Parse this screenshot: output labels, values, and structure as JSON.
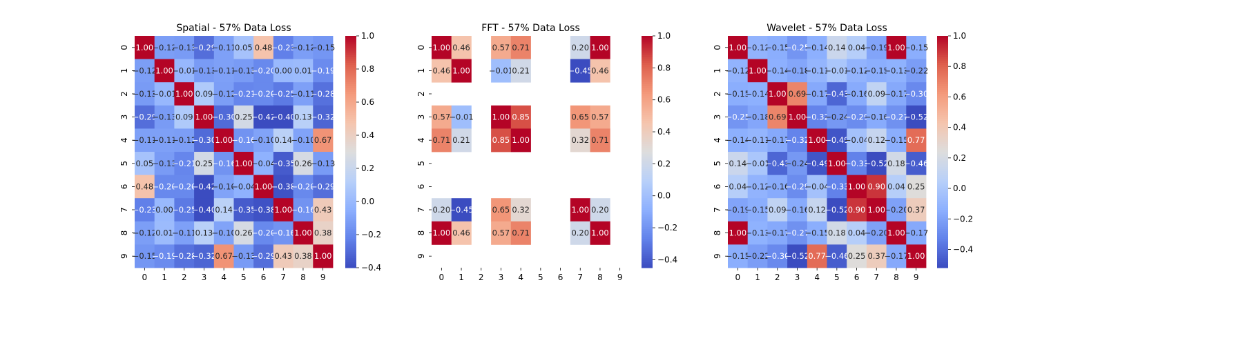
{
  "chart_data": [
    {
      "type": "heatmap",
      "title": "Spatial - 57% Data Loss",
      "x_ticks": [
        "0",
        "1",
        "2",
        "3",
        "4",
        "5",
        "6",
        "7",
        "8",
        "9"
      ],
      "y_ticks": [
        "0",
        "1",
        "2",
        "3",
        "4",
        "5",
        "6",
        "7",
        "8",
        "9"
      ],
      "colormap": "coolwarm",
      "colorbar": {
        "vmin": -0.4,
        "vmax": 1.0,
        "ticks": [
          -0.4,
          -0.2,
          0.0,
          0.2,
          0.4,
          0.6,
          0.8,
          1.0
        ],
        "tick_labels": [
          "−0.4",
          "−0.2",
          "0.0",
          "0.2",
          "0.4",
          "0.6",
          "0.8",
          "1.0"
        ]
      },
      "values": [
        [
          1.0,
          -0.12,
          -0.13,
          -0.29,
          -0.11,
          0.05,
          0.48,
          -0.23,
          -0.12,
          -0.15
        ],
        [
          -0.12,
          1.0,
          -0.01,
          -0.13,
          -0.11,
          -0.13,
          -0.2,
          0.0,
          0.01,
          -0.19
        ],
        [
          -0.13,
          -0.01,
          1.0,
          0.09,
          -0.12,
          -0.21,
          -0.2,
          -0.25,
          -0.11,
          -0.28
        ],
        [
          -0.29,
          -0.13,
          0.09,
          1.0,
          -0.3,
          0.25,
          -0.42,
          -0.4,
          0.13,
          -0.32
        ],
        [
          -0.11,
          -0.11,
          -0.12,
          -0.3,
          1.0,
          -0.16,
          -0.1,
          0.14,
          -0.1,
          0.67
        ],
        [
          0.05,
          -0.13,
          -0.21,
          0.25,
          -0.16,
          1.0,
          -0.04,
          -0.35,
          0.26,
          -0.13
        ],
        [
          0.48,
          -0.2,
          -0.2,
          -0.42,
          -0.1,
          -0.04,
          1.0,
          -0.38,
          -0.2,
          -0.29
        ],
        [
          -0.23,
          0.0,
          -0.25,
          -0.4,
          0.14,
          -0.35,
          -0.38,
          1.0,
          -0.16,
          0.43
        ],
        [
          -0.12,
          0.01,
          -0.11,
          0.13,
          -0.1,
          0.26,
          -0.2,
          -0.16,
          1.0,
          0.38
        ],
        [
          -0.15,
          -0.19,
          -0.28,
          -0.32,
          0.67,
          -0.13,
          -0.29,
          0.43,
          0.38,
          1.0
        ]
      ]
    },
    {
      "type": "heatmap",
      "title": "FFT - 57% Data Loss",
      "x_ticks": [
        "0",
        "1",
        "2",
        "3",
        "4",
        "5",
        "6",
        "7",
        "8",
        "9"
      ],
      "y_ticks": [
        "0",
        "1",
        "2",
        "3",
        "4",
        "5",
        "6",
        "7",
        "8",
        "9"
      ],
      "colormap": "coolwarm",
      "colorbar": {
        "vmin": -0.45,
        "vmax": 1.0,
        "ticks": [
          -0.4,
          -0.2,
          0.0,
          0.2,
          0.4,
          0.6,
          0.8,
          1.0
        ],
        "tick_labels": [
          "−0.4",
          "−0.2",
          "0.0",
          "0.2",
          "0.4",
          "0.6",
          "0.8",
          "1.0"
        ]
      },
      "values": [
        [
          1.0,
          0.46,
          null,
          0.57,
          0.71,
          null,
          null,
          0.2,
          1.0,
          null
        ],
        [
          0.46,
          1.0,
          null,
          -0.01,
          0.21,
          null,
          null,
          -0.45,
          0.46,
          null
        ],
        [
          null,
          null,
          null,
          null,
          null,
          null,
          null,
          null,
          null,
          null
        ],
        [
          0.57,
          -0.01,
          null,
          1.0,
          0.85,
          null,
          null,
          0.65,
          0.57,
          null
        ],
        [
          0.71,
          0.21,
          null,
          0.85,
          1.0,
          null,
          null,
          0.32,
          0.71,
          null
        ],
        [
          null,
          null,
          null,
          null,
          null,
          null,
          null,
          null,
          null,
          null
        ],
        [
          null,
          null,
          null,
          null,
          null,
          null,
          null,
          null,
          null,
          null
        ],
        [
          0.2,
          -0.45,
          null,
          0.65,
          0.32,
          null,
          null,
          1.0,
          0.2,
          null
        ],
        [
          1.0,
          0.46,
          null,
          0.57,
          0.71,
          null,
          null,
          0.2,
          1.0,
          null
        ],
        [
          null,
          null,
          null,
          null,
          null,
          null,
          null,
          null,
          null,
          null
        ]
      ]
    },
    {
      "type": "heatmap",
      "title": "Wavelet - 57% Data Loss",
      "x_ticks": [
        "0",
        "1",
        "2",
        "3",
        "4",
        "5",
        "6",
        "7",
        "8",
        "9"
      ],
      "y_ticks": [
        "0",
        "1",
        "2",
        "3",
        "4",
        "5",
        "6",
        "7",
        "8",
        "9"
      ],
      "colormap": "coolwarm",
      "colorbar": {
        "vmin": -0.52,
        "vmax": 1.0,
        "ticks": [
          -0.4,
          -0.2,
          0.0,
          0.2,
          0.4,
          0.6,
          0.8,
          1.0
        ],
        "tick_labels": [
          "−0.4",
          "−0.2",
          "0.0",
          "0.2",
          "0.4",
          "0.6",
          "0.8",
          "1.0"
        ]
      },
      "values": [
        [
          1.0,
          -0.12,
          -0.15,
          -0.25,
          -0.14,
          0.14,
          0.04,
          -0.19,
          1.0,
          -0.15
        ],
        [
          -0.12,
          1.0,
          -0.14,
          -0.18,
          -0.11,
          -0.01,
          -0.12,
          -0.15,
          -0.13,
          -0.22
        ],
        [
          -0.15,
          -0.14,
          1.0,
          0.69,
          -0.17,
          -0.43,
          -0.16,
          0.09,
          -0.17,
          -0.3
        ],
        [
          -0.25,
          -0.18,
          0.69,
          1.0,
          -0.32,
          -0.24,
          -0.29,
          -0.16,
          -0.27,
          -0.52
        ],
        [
          -0.14,
          -0.11,
          -0.17,
          -0.32,
          1.0,
          -0.49,
          -0.04,
          0.12,
          -0.15,
          0.77
        ],
        [
          0.14,
          -0.01,
          -0.43,
          -0.24,
          -0.49,
          1.0,
          -0.33,
          -0.52,
          0.18,
          -0.46
        ],
        [
          0.04,
          -0.12,
          -0.16,
          -0.29,
          -0.04,
          -0.33,
          1.0,
          0.9,
          0.04,
          0.25
        ],
        [
          -0.19,
          -0.15,
          0.09,
          -0.16,
          0.12,
          -0.52,
          0.9,
          1.0,
          -0.2,
          0.37
        ],
        [
          1.0,
          -0.13,
          -0.17,
          -0.27,
          -0.15,
          0.18,
          0.04,
          -0.2,
          1.0,
          -0.17
        ],
        [
          -0.15,
          -0.22,
          -0.3,
          -0.52,
          0.77,
          -0.46,
          0.25,
          0.37,
          -0.17,
          1.0
        ]
      ]
    }
  ]
}
